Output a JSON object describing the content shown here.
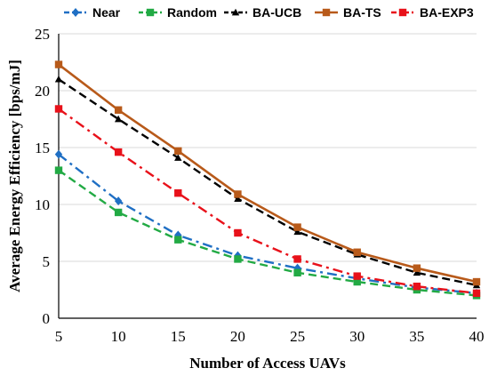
{
  "chart_data": {
    "type": "line",
    "title": "",
    "xlabel": "Number of Access UAVs",
    "ylabel": "Average Energy Efficiency  [bps/mJ]",
    "x": [
      5,
      10,
      15,
      20,
      25,
      30,
      35,
      40
    ],
    "xlim": [
      5,
      40
    ],
    "ylim": [
      0,
      25
    ],
    "xticks": [
      "5",
      "10",
      "15",
      "20",
      "25",
      "30",
      "35",
      "40"
    ],
    "yticks": [
      "0",
      "5",
      "10",
      "15",
      "20",
      "25"
    ],
    "grid": "horizontal",
    "legend_position": "top",
    "series": [
      {
        "name": "Near",
        "color": "#1f6fc4",
        "dash": "dash-dot",
        "marker": "diamond",
        "values": [
          14.4,
          10.3,
          7.3,
          5.5,
          4.4,
          3.5,
          2.7,
          2.2
        ]
      },
      {
        "name": "Random",
        "color": "#22aa44",
        "dash": "dashed",
        "marker": "square",
        "values": [
          13.0,
          9.3,
          6.9,
          5.2,
          4.0,
          3.2,
          2.5,
          2.0
        ]
      },
      {
        "name": "BA-UCB",
        "color": "#000000",
        "dash": "dashed",
        "marker": "triangle",
        "values": [
          21.0,
          17.5,
          14.1,
          10.5,
          7.6,
          5.6,
          4.0,
          2.9
        ]
      },
      {
        "name": "BA-TS",
        "color": "#b85a1a",
        "dash": "solid",
        "marker": "square",
        "values": [
          22.3,
          18.3,
          14.7,
          10.9,
          8.0,
          5.8,
          4.4,
          3.2
        ]
      },
      {
        "name": "BA-EXP3",
        "color": "#e8111a",
        "dash": "dash-dot",
        "marker": "square",
        "values": [
          18.4,
          14.6,
          11.0,
          7.5,
          5.2,
          3.7,
          2.8,
          2.2
        ]
      }
    ]
  }
}
